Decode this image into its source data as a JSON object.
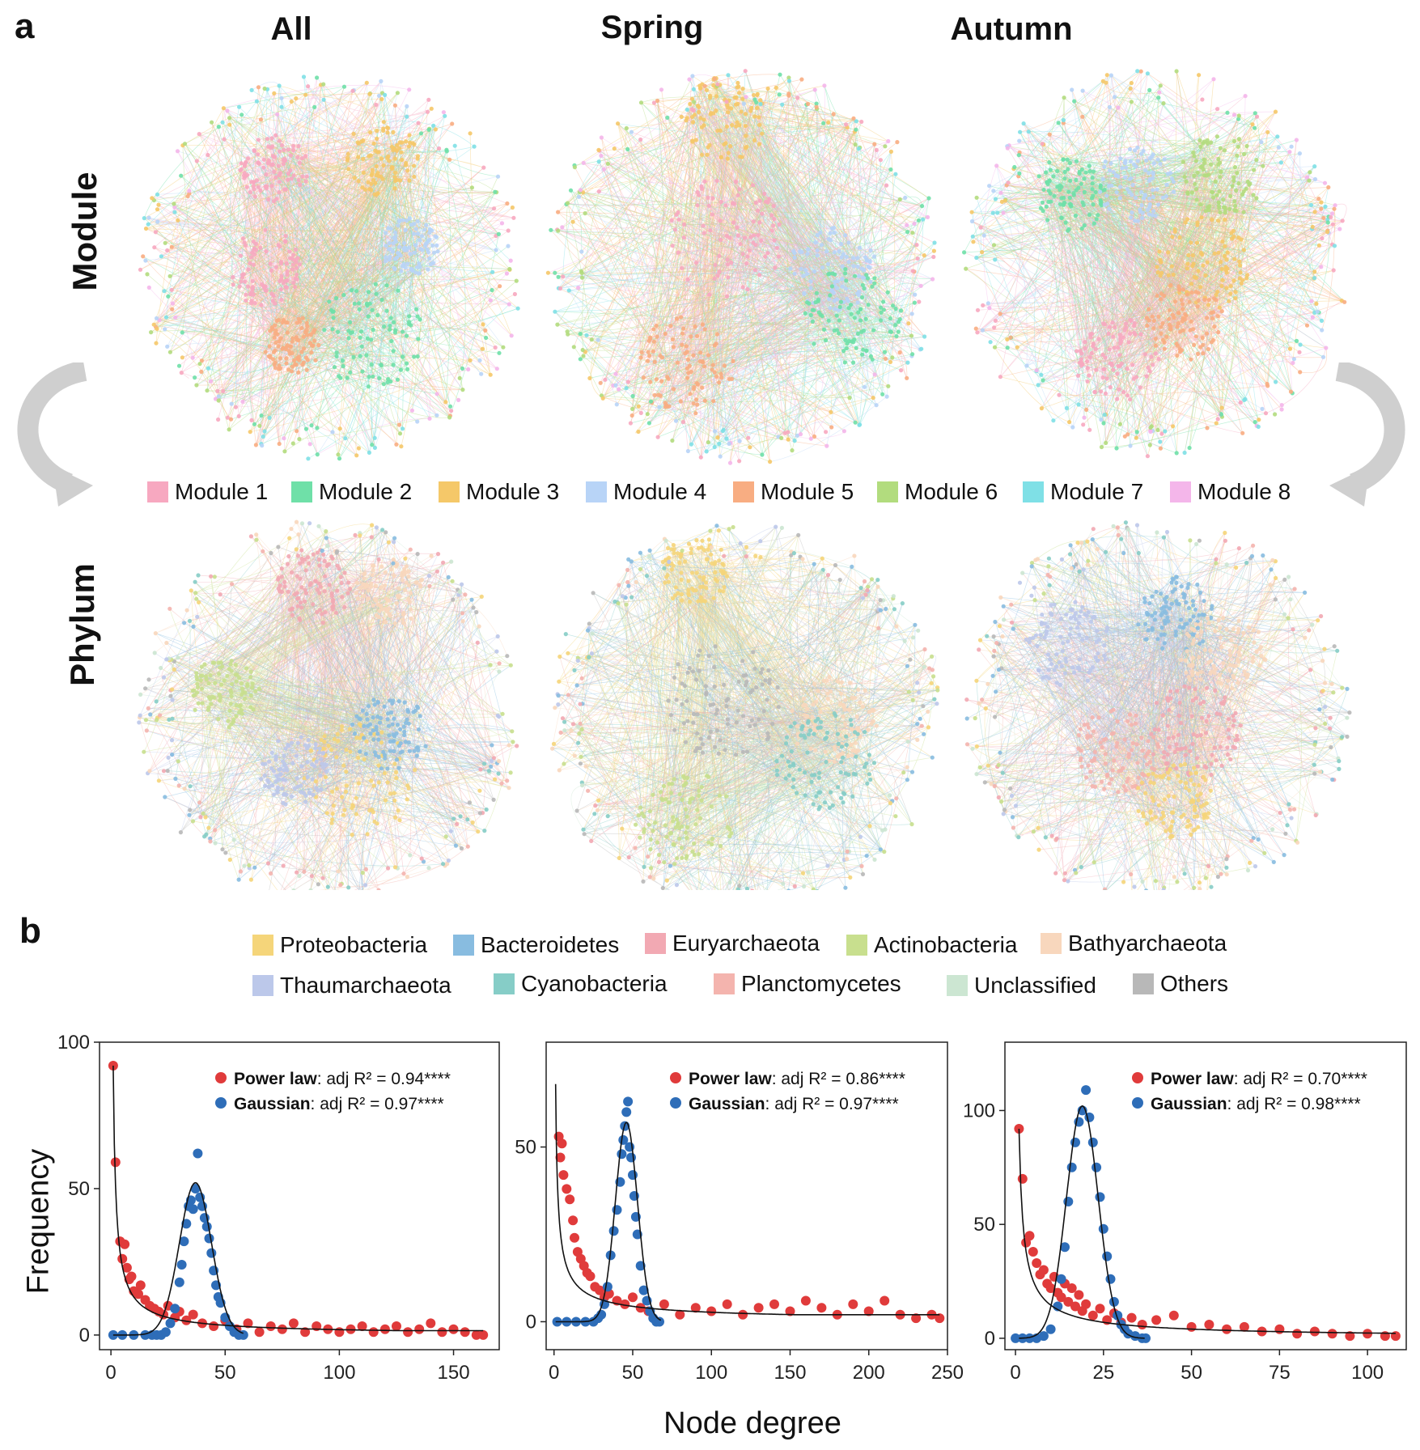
{
  "panel_a_label": "a",
  "panel_b_label": "b",
  "columns": [
    "All",
    "Spring",
    "Autumn"
  ],
  "rows": [
    "Module",
    "Phylum"
  ],
  "module_legend": [
    {
      "label": "Module 1",
      "color": "#f7a8c0"
    },
    {
      "label": "Module 2",
      "color": "#6fe0a8"
    },
    {
      "label": "Module 3",
      "color": "#f5c869"
    },
    {
      "label": "Module 4",
      "color": "#b8d4f7"
    },
    {
      "label": "Module 5",
      "color": "#f8ad82"
    },
    {
      "label": "Module 6",
      "color": "#b2dc7e"
    },
    {
      "label": "Module 7",
      "color": "#7fe0e6"
    },
    {
      "label": "Module 8",
      "color": "#f4b6ea"
    }
  ],
  "phylum_legend_row1": [
    {
      "label": "Proteobacteria",
      "color": "#f5d57a"
    },
    {
      "label": "Bacteroidetes",
      "color": "#88bce0"
    },
    {
      "label": "Euryarchaeota",
      "color": "#f2a9b3"
    },
    {
      "label": "Actinobacteria",
      "color": "#c8df8e"
    },
    {
      "label": "Bathyarchaeota",
      "color": "#f8d7bd"
    }
  ],
  "phylum_legend_row2": [
    {
      "label": "Thaumarchaeota",
      "color": "#bcc8ea"
    },
    {
      "label": "Cyanobacteria",
      "color": "#86cdc7"
    },
    {
      "label": "Planctomycetes",
      "color": "#f4b4ae"
    },
    {
      "label": "Unclassified",
      "color": "#cce6d2"
    },
    {
      "label": "Others",
      "color": "#b8b8b8"
    }
  ],
  "x_axis_label": "Node degree",
  "y_axis_label": "Frequency",
  "power_color": "#e03b3b",
  "gauss_color": "#2e6db8",
  "chart_data": [
    {
      "type": "scatter",
      "panel": "All",
      "xlim": [
        -5,
        170
      ],
      "ylim": [
        -5,
        100
      ],
      "xticks": [
        "0",
        "50",
        "100",
        "150"
      ],
      "xtick_values": [
        0,
        50,
        100,
        150
      ],
      "yticks": [
        "0",
        "50",
        "100"
      ],
      "ytick_values": [
        0,
        50,
        100
      ],
      "legend": [
        {
          "name": "Power law",
          "stat": ": adj ",
          "r2": "R² = 0.94****"
        },
        {
          "name": "Gaussian",
          "stat": ": adj ",
          "r2": "R² = 0.97****"
        }
      ],
      "power_law": {
        "a": 92,
        "b": 0.85,
        "xmax": 163,
        "tail": 1.5
      },
      "gaussian": {
        "mu": 37,
        "sigma": 7,
        "amp": 52,
        "xmax": 58
      },
      "power_points": [
        [
          1,
          92
        ],
        [
          2,
          59
        ],
        [
          4,
          32
        ],
        [
          5,
          26
        ],
        [
          6,
          31
        ],
        [
          7,
          23
        ],
        [
          8,
          19
        ],
        [
          9,
          20
        ],
        [
          10,
          15
        ],
        [
          12,
          14
        ],
        [
          13,
          17
        ],
        [
          15,
          12
        ],
        [
          17,
          10
        ],
        [
          19,
          9
        ],
        [
          21,
          8
        ],
        [
          23,
          7
        ],
        [
          25,
          10
        ],
        [
          28,
          6
        ],
        [
          30,
          8
        ],
        [
          33,
          5
        ],
        [
          36,
          7
        ],
        [
          40,
          4
        ],
        [
          45,
          3
        ],
        [
          50,
          5
        ],
        [
          55,
          2
        ],
        [
          60,
          4
        ],
        [
          65,
          1
        ],
        [
          70,
          3
        ],
        [
          75,
          2
        ],
        [
          80,
          4
        ],
        [
          85,
          1
        ],
        [
          90,
          3
        ],
        [
          95,
          2
        ],
        [
          100,
          1
        ],
        [
          105,
          2
        ],
        [
          110,
          3
        ],
        [
          115,
          1
        ],
        [
          120,
          2
        ],
        [
          125,
          3
        ],
        [
          130,
          1
        ],
        [
          135,
          2
        ],
        [
          140,
          4
        ],
        [
          145,
          1
        ],
        [
          150,
          2
        ],
        [
          155,
          1
        ],
        [
          160,
          0
        ],
        [
          163,
          0
        ]
      ],
      "gauss_points": [
        [
          1,
          0
        ],
        [
          5,
          0
        ],
        [
          10,
          0
        ],
        [
          15,
          0
        ],
        [
          18,
          0
        ],
        [
          20,
          0
        ],
        [
          22,
          0
        ],
        [
          24,
          1
        ],
        [
          26,
          4
        ],
        [
          28,
          9
        ],
        [
          30,
          18
        ],
        [
          31,
          24
        ],
        [
          32,
          32
        ],
        [
          33,
          38
        ],
        [
          34,
          44
        ],
        [
          35,
          46
        ],
        [
          36,
          43
        ],
        [
          37,
          50
        ],
        [
          38,
          62
        ],
        [
          39,
          47
        ],
        [
          40,
          44
        ],
        [
          41,
          40
        ],
        [
          42,
          37
        ],
        [
          43,
          33
        ],
        [
          44,
          28
        ],
        [
          45,
          22
        ],
        [
          46,
          17
        ],
        [
          47,
          13
        ],
        [
          48,
          11
        ],
        [
          50,
          6
        ],
        [
          52,
          3
        ],
        [
          54,
          1
        ],
        [
          56,
          0
        ],
        [
          58,
          0
        ]
      ]
    },
    {
      "type": "scatter",
      "panel": "Spring",
      "xlim": [
        -5,
        250
      ],
      "ylim": [
        -8,
        80
      ],
      "xticks": [
        "0",
        "50",
        "100",
        "150",
        "200",
        "250"
      ],
      "xtick_values": [
        0,
        50,
        100,
        150,
        200,
        250
      ],
      "yticks": [
        "0",
        "50"
      ],
      "ytick_values": [
        0,
        50
      ],
      "legend": [
        {
          "name": "Power law",
          "stat": ": adj ",
          "r2": "R² = 0.86****"
        },
        {
          "name": "Gaussian",
          "stat": ": adj ",
          "r2": "R² = 0.97****"
        }
      ],
      "power_law": {
        "a": 68,
        "b": 0.7,
        "xmax": 245,
        "tail": 2
      },
      "gaussian": {
        "mu": 46,
        "sigma": 7,
        "amp": 57,
        "xmax": 68
      },
      "power_points": [
        [
          3,
          53
        ],
        [
          4,
          47
        ],
        [
          5,
          51
        ],
        [
          6,
          42
        ],
        [
          8,
          38
        ],
        [
          10,
          35
        ],
        [
          12,
          29
        ],
        [
          13,
          24
        ],
        [
          15,
          20
        ],
        [
          17,
          18
        ],
        [
          19,
          16
        ],
        [
          21,
          14
        ],
        [
          23,
          13
        ],
        [
          26,
          10
        ],
        [
          29,
          9
        ],
        [
          32,
          7
        ],
        [
          35,
          8
        ],
        [
          40,
          6
        ],
        [
          45,
          5
        ],
        [
          50,
          7
        ],
        [
          55,
          4
        ],
        [
          60,
          3
        ],
        [
          70,
          5
        ],
        [
          80,
          2
        ],
        [
          90,
          4
        ],
        [
          100,
          3
        ],
        [
          110,
          5
        ],
        [
          120,
          2
        ],
        [
          130,
          4
        ],
        [
          140,
          5
        ],
        [
          150,
          3
        ],
        [
          160,
          6
        ],
        [
          170,
          4
        ],
        [
          180,
          2
        ],
        [
          190,
          5
        ],
        [
          200,
          3
        ],
        [
          210,
          6
        ],
        [
          220,
          2
        ],
        [
          230,
          1
        ],
        [
          240,
          2
        ],
        [
          245,
          1
        ]
      ],
      "gauss_points": [
        [
          2,
          0
        ],
        [
          8,
          0
        ],
        [
          14,
          0
        ],
        [
          20,
          0
        ],
        [
          25,
          0
        ],
        [
          28,
          1
        ],
        [
          30,
          2
        ],
        [
          32,
          5
        ],
        [
          34,
          10
        ],
        [
          36,
          19
        ],
        [
          38,
          26
        ],
        [
          40,
          32
        ],
        [
          42,
          40
        ],
        [
          43,
          48
        ],
        [
          44,
          52
        ],
        [
          45,
          56
        ],
        [
          46,
          60
        ],
        [
          47,
          63
        ],
        [
          48,
          50
        ],
        [
          49,
          47
        ],
        [
          50,
          42
        ],
        [
          51,
          36
        ],
        [
          52,
          30
        ],
        [
          53,
          25
        ],
        [
          55,
          16
        ],
        [
          57,
          9
        ],
        [
          59,
          6
        ],
        [
          61,
          3
        ],
        [
          63,
          1
        ],
        [
          65,
          0
        ],
        [
          67,
          0
        ]
      ]
    },
    {
      "type": "scatter",
      "panel": "Autumn",
      "xlim": [
        -3,
        111
      ],
      "ylim": [
        -5,
        130
      ],
      "xticks": [
        "0",
        "25",
        "50",
        "75",
        "100"
      ],
      "xtick_values": [
        0,
        25,
        50,
        75,
        100
      ],
      "yticks": [
        "0",
        "50",
        "100"
      ],
      "ytick_values": [
        0,
        50,
        100
      ],
      "legend": [
        {
          "name": "Power law",
          "stat": ": adj ",
          "r2": "R² = 0.70****"
        },
        {
          "name": "Gaussian",
          "stat": ": adj ",
          "r2": "R² = 0.98****"
        }
      ],
      "power_law": {
        "a": 92,
        "b": 0.8,
        "xmax": 108,
        "tail": 2
      },
      "gaussian": {
        "mu": 19,
        "sigma": 4.5,
        "amp": 102,
        "xmax": 37
      },
      "power_points": [
        [
          1,
          92
        ],
        [
          2,
          70
        ],
        [
          3,
          42
        ],
        [
          4,
          45
        ],
        [
          5,
          38
        ],
        [
          6,
          33
        ],
        [
          7,
          28
        ],
        [
          8,
          30
        ],
        [
          9,
          24
        ],
        [
          10,
          22
        ],
        [
          11,
          27
        ],
        [
          12,
          20
        ],
        [
          13,
          18
        ],
        [
          14,
          24
        ],
        [
          15,
          16
        ],
        [
          16,
          22
        ],
        [
          17,
          14
        ],
        [
          18,
          19
        ],
        [
          19,
          12
        ],
        [
          20,
          15
        ],
        [
          22,
          10
        ],
        [
          24,
          13
        ],
        [
          26,
          8
        ],
        [
          28,
          11
        ],
        [
          30,
          7
        ],
        [
          33,
          9
        ],
        [
          36,
          6
        ],
        [
          40,
          8
        ],
        [
          45,
          10
        ],
        [
          50,
          5
        ],
        [
          55,
          6
        ],
        [
          60,
          4
        ],
        [
          65,
          5
        ],
        [
          70,
          3
        ],
        [
          75,
          4
        ],
        [
          80,
          2
        ],
        [
          85,
          3
        ],
        [
          90,
          2
        ],
        [
          95,
          1
        ],
        [
          100,
          2
        ],
        [
          105,
          1
        ],
        [
          108,
          1
        ]
      ],
      "gauss_points": [
        [
          0,
          0
        ],
        [
          2,
          0
        ],
        [
          4,
          0
        ],
        [
          6,
          0
        ],
        [
          8,
          1
        ],
        [
          10,
          4
        ],
        [
          12,
          14
        ],
        [
          13,
          26
        ],
        [
          14,
          40
        ],
        [
          15,
          60
        ],
        [
          16,
          75
        ],
        [
          17,
          86
        ],
        [
          18,
          95
        ],
        [
          19,
          100
        ],
        [
          20,
          109
        ],
        [
          21,
          97
        ],
        [
          22,
          86
        ],
        [
          23,
          75
        ],
        [
          24,
          62
        ],
        [
          25,
          48
        ],
        [
          26,
          36
        ],
        [
          27,
          26
        ],
        [
          28,
          16
        ],
        [
          29,
          10
        ],
        [
          30,
          6
        ],
        [
          31,
          4
        ],
        [
          32,
          2
        ],
        [
          34,
          1
        ],
        [
          36,
          0
        ],
        [
          37,
          0
        ]
      ]
    }
  ]
}
